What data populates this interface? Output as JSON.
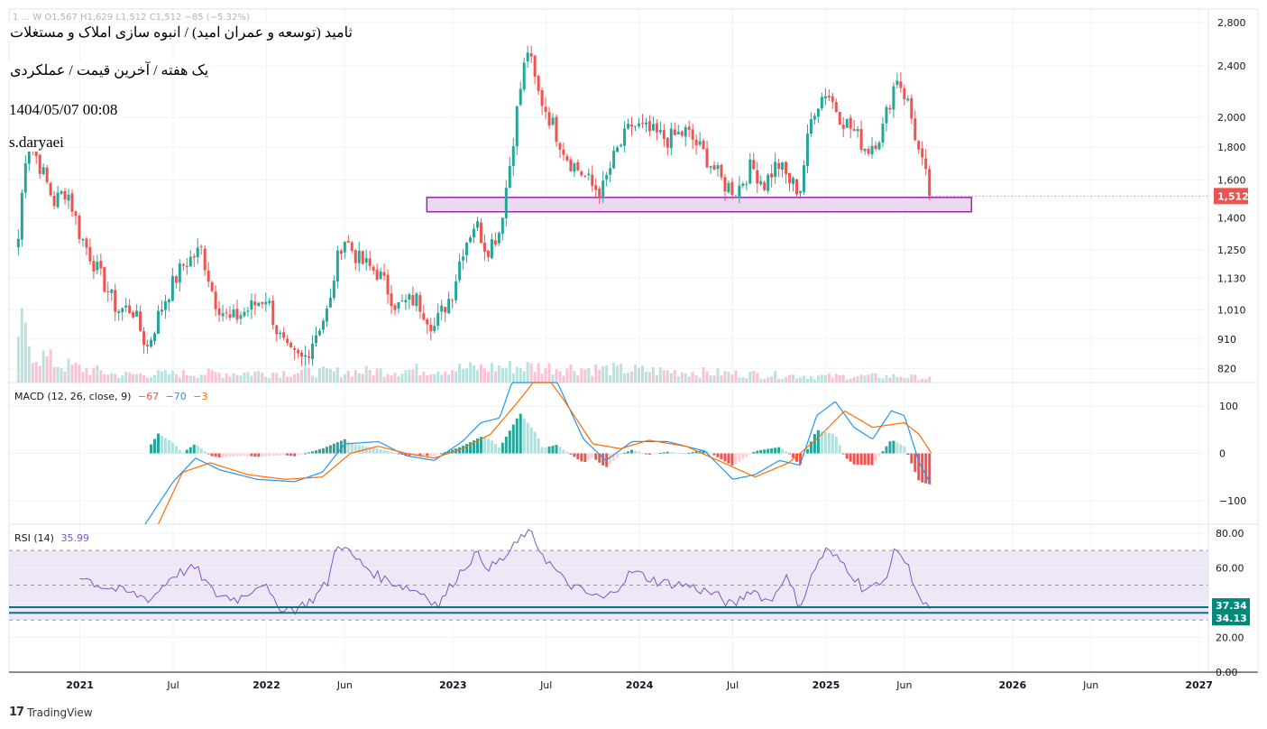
{
  "header": {
    "ohlc_text": "1 ... W  O1,567  H1,629  L1,512  C1,512  −85 (−5.32%)",
    "title_main": "ثامید (توسعه و عمران امید) / انبوه سازی املاک و مستغلات",
    "title_sub": "یک هفته / آخرین قیمت / عملکردی",
    "date": "1404/05/07 00:08",
    "author": "s.daryaei"
  },
  "branding": {
    "logo_mark": "17",
    "logo_text": "TradingView"
  },
  "colors": {
    "up": "#26a69a",
    "down": "#ef5350",
    "macd_line": "#2196f3",
    "signal_line": "#ff6d00",
    "hist_up_strong": "#26a69a",
    "hist_up_weak": "#b2dfdb",
    "hist_down_strong": "#ef5350",
    "hist_down_weak": "#ffcdd2",
    "rsi_line": "#7e57c2",
    "rsi_band": "#ede7f6",
    "support_zone_fill": "#e1bee7",
    "support_zone_border": "#9c27b0",
    "hline": "#0b7285",
    "last_price_bg": "#ef5350",
    "hline_label_bg": "#00897b"
  },
  "chart_data": [
    {
      "type": "candlestick",
      "title": "ثامید (توسعه و عمران امید) / انبوه سازی املاک و مستغلات",
      "interval": "1W",
      "scale": "log",
      "ylim": [
        780,
        2900
      ],
      "y_ticks": [
        2800,
        2400,
        2000,
        1800,
        1600,
        1400,
        1250,
        1130,
        1010,
        910,
        820
      ],
      "y_tick_labels": [
        "2,800",
        "2,400",
        "2,000",
        "1,800",
        "1,600",
        "1,400",
        "1,250",
        "1,130",
        "1,010",
        "910",
        "820"
      ],
      "last_price": 1512,
      "last_price_label": "1,512",
      "x_ticks": [
        {
          "label": "2021",
          "t": 2021.0
        },
        {
          "label": "Jul",
          "t": 2021.5
        },
        {
          "label": "2022",
          "t": 2022.0
        },
        {
          "label": "Jun",
          "t": 2022.42
        },
        {
          "label": "2023",
          "t": 2023.0
        },
        {
          "label": "Jul",
          "t": 2023.5
        },
        {
          "label": "2024",
          "t": 2024.0
        },
        {
          "label": "Jul",
          "t": 2024.5
        },
        {
          "label": "2025",
          "t": 2025.0
        },
        {
          "label": "Jun",
          "t": 2025.42
        },
        {
          "label": "2026",
          "t": 2026.0
        },
        {
          "label": "Jun",
          "t": 2026.42
        },
        {
          "label": "2027",
          "t": 2027.0
        }
      ],
      "t_range": [
        2020.62,
        2027.05
      ],
      "data_end": 2025.57,
      "support_zone": {
        "t_start": 2022.86,
        "t_end": 2025.78,
        "low": 1430,
        "high": 1505
      },
      "anchors": [
        {
          "t": 2020.67,
          "v": 1300
        },
        {
          "t": 2020.72,
          "v": 1880
        },
        {
          "t": 2020.78,
          "v": 1700
        },
        {
          "t": 2020.86,
          "v": 1480
        },
        {
          "t": 2020.93,
          "v": 1550
        },
        {
          "t": 2021.0,
          "v": 1320
        },
        {
          "t": 2021.1,
          "v": 1150
        },
        {
          "t": 2021.2,
          "v": 1010
        },
        {
          "t": 2021.28,
          "v": 1015
        },
        {
          "t": 2021.36,
          "v": 880
        },
        {
          "t": 2021.45,
          "v": 1040
        },
        {
          "t": 2021.55,
          "v": 1180
        },
        {
          "t": 2021.65,
          "v": 1250
        },
        {
          "t": 2021.72,
          "v": 1050
        },
        {
          "t": 2021.8,
          "v": 970
        },
        {
          "t": 2021.9,
          "v": 1010
        },
        {
          "t": 2022.0,
          "v": 1060
        },
        {
          "t": 2022.06,
          "v": 930
        },
        {
          "t": 2022.12,
          "v": 860
        },
        {
          "t": 2022.2,
          "v": 845
        },
        {
          "t": 2022.28,
          "v": 950
        },
        {
          "t": 2022.34,
          "v": 1020
        },
        {
          "t": 2022.36,
          "v": 1130
        },
        {
          "t": 2022.41,
          "v": 1310
        },
        {
          "t": 2022.5,
          "v": 1200
        },
        {
          "t": 2022.6,
          "v": 1150
        },
        {
          "t": 2022.7,
          "v": 1020
        },
        {
          "t": 2022.8,
          "v": 1050
        },
        {
          "t": 2022.9,
          "v": 950
        },
        {
          "t": 2023.0,
          "v": 1080
        },
        {
          "t": 2023.05,
          "v": 1250
        },
        {
          "t": 2023.12,
          "v": 1380
        },
        {
          "t": 2023.18,
          "v": 1250
        },
        {
          "t": 2023.25,
          "v": 1340
        },
        {
          "t": 2023.3,
          "v": 1650
        },
        {
          "t": 2023.36,
          "v": 2200
        },
        {
          "t": 2023.4,
          "v": 2550
        },
        {
          "t": 2023.45,
          "v": 2200
        },
        {
          "t": 2023.5,
          "v": 2050
        },
        {
          "t": 2023.55,
          "v": 1900
        },
        {
          "t": 2023.62,
          "v": 1720
        },
        {
          "t": 2023.7,
          "v": 1630
        },
        {
          "t": 2023.75,
          "v": 1560
        },
        {
          "t": 2023.8,
          "v": 1540
        },
        {
          "t": 2023.87,
          "v": 1750
        },
        {
          "t": 2023.96,
          "v": 1950
        },
        {
          "t": 2024.05,
          "v": 1900
        },
        {
          "t": 2024.15,
          "v": 1850
        },
        {
          "t": 2024.25,
          "v": 1900
        },
        {
          "t": 2024.35,
          "v": 1750
        },
        {
          "t": 2024.45,
          "v": 1580
        },
        {
          "t": 2024.52,
          "v": 1540
        },
        {
          "t": 2024.6,
          "v": 1680
        },
        {
          "t": 2024.67,
          "v": 1580
        },
        {
          "t": 2024.74,
          "v": 1700
        },
        {
          "t": 2024.8,
          "v": 1600
        },
        {
          "t": 2024.86,
          "v": 1540
        },
        {
          "t": 2024.93,
          "v": 2050
        },
        {
          "t": 2025.0,
          "v": 2200
        },
        {
          "t": 2025.08,
          "v": 2000
        },
        {
          "t": 2025.15,
          "v": 1900
        },
        {
          "t": 2025.22,
          "v": 1780
        },
        {
          "t": 2025.3,
          "v": 1900
        },
        {
          "t": 2025.38,
          "v": 2320
        },
        {
          "t": 2025.44,
          "v": 2100
        },
        {
          "t": 2025.5,
          "v": 1750
        },
        {
          "t": 2025.54,
          "v": 1597
        },
        {
          "t": 2025.57,
          "v": 1512
        }
      ],
      "volume_peaks": [
        {
          "t": 2020.68,
          "v": 100
        },
        {
          "t": 2020.77,
          "v": 55
        },
        {
          "t": 2020.88,
          "v": 35
        },
        {
          "t": 2021.2,
          "v": 15
        },
        {
          "t": 2022.2,
          "v": 20
        },
        {
          "t": 2022.41,
          "v": 20
        },
        {
          "t": 2023.35,
          "v": 30
        },
        {
          "t": 2023.42,
          "v": 30
        },
        {
          "t": 2024.95,
          "v": 12
        },
        {
          "t": 2025.4,
          "v": 12
        },
        {
          "t": 2025.55,
          "v": 8
        }
      ]
    },
    {
      "type": "line+histogram",
      "title": "MACD",
      "label": "MACD (12, 26, close, 9)",
      "hist_value": "−67",
      "macd_value": "−70",
      "signal_value": "−3",
      "ylim": [
        -150,
        150
      ],
      "y_ticks": [
        100,
        0,
        -100
      ],
      "y_tick_labels": [
        "100",
        "0",
        "−100"
      ],
      "macd_anchors": [
        {
          "t": 2021.35,
          "v": -150
        },
        {
          "t": 2021.5,
          "v": -60
        },
        {
          "t": 2021.62,
          "v": -10
        },
        {
          "t": 2021.75,
          "v": -35
        },
        {
          "t": 2021.95,
          "v": -55
        },
        {
          "t": 2022.15,
          "v": -60
        },
        {
          "t": 2022.3,
          "v": -40
        },
        {
          "t": 2022.42,
          "v": 20
        },
        {
          "t": 2022.6,
          "v": 25
        },
        {
          "t": 2022.75,
          "v": -5
        },
        {
          "t": 2022.9,
          "v": -15
        },
        {
          "t": 2023.05,
          "v": 25
        },
        {
          "t": 2023.15,
          "v": 65
        },
        {
          "t": 2023.25,
          "v": 75
        },
        {
          "t": 2023.36,
          "v": 200
        },
        {
          "t": 2023.45,
          "v": 200
        },
        {
          "t": 2023.56,
          "v": 150
        },
        {
          "t": 2023.7,
          "v": 30
        },
        {
          "t": 2023.82,
          "v": -15
        },
        {
          "t": 2023.96,
          "v": 25
        },
        {
          "t": 2024.15,
          "v": 25
        },
        {
          "t": 2024.35,
          "v": 5
        },
        {
          "t": 2024.5,
          "v": -55
        },
        {
          "t": 2024.62,
          "v": -45
        },
        {
          "t": 2024.75,
          "v": -15
        },
        {
          "t": 2024.86,
          "v": -25
        },
        {
          "t": 2024.95,
          "v": 80
        },
        {
          "t": 2025.05,
          "v": 110
        },
        {
          "t": 2025.15,
          "v": 55
        },
        {
          "t": 2025.25,
          "v": 30
        },
        {
          "t": 2025.35,
          "v": 90
        },
        {
          "t": 2025.42,
          "v": 80
        },
        {
          "t": 2025.5,
          "v": -20
        },
        {
          "t": 2025.57,
          "v": -70
        }
      ],
      "signal_anchors": [
        {
          "t": 2021.42,
          "v": -150
        },
        {
          "t": 2021.55,
          "v": -40
        },
        {
          "t": 2021.7,
          "v": -20
        },
        {
          "t": 2021.9,
          "v": -45
        },
        {
          "t": 2022.1,
          "v": -55
        },
        {
          "t": 2022.3,
          "v": -50
        },
        {
          "t": 2022.45,
          "v": 0
        },
        {
          "t": 2022.6,
          "v": 15
        },
        {
          "t": 2022.75,
          "v": 0
        },
        {
          "t": 2022.9,
          "v": -10
        },
        {
          "t": 2023.05,
          "v": 10
        },
        {
          "t": 2023.2,
          "v": 40
        },
        {
          "t": 2023.35,
          "v": 110
        },
        {
          "t": 2023.48,
          "v": 175
        },
        {
          "t": 2023.6,
          "v": 110
        },
        {
          "t": 2023.75,
          "v": 20
        },
        {
          "t": 2023.9,
          "v": 10
        },
        {
          "t": 2024.05,
          "v": 28
        },
        {
          "t": 2024.25,
          "v": 15
        },
        {
          "t": 2024.45,
          "v": -20
        },
        {
          "t": 2024.62,
          "v": -50
        },
        {
          "t": 2024.8,
          "v": -20
        },
        {
          "t": 2024.95,
          "v": 30
        },
        {
          "t": 2025.1,
          "v": 90
        },
        {
          "t": 2025.25,
          "v": 55
        },
        {
          "t": 2025.42,
          "v": 65
        },
        {
          "t": 2025.5,
          "v": 40
        },
        {
          "t": 2025.57,
          "v": -3
        }
      ]
    },
    {
      "type": "line",
      "title": "RSI",
      "label": "RSI (14)",
      "value": "35.99",
      "ylim": [
        0,
        82
      ],
      "y_ticks": [
        80,
        60,
        40,
        20,
        0
      ],
      "y_tick_labels": [
        "80.00",
        "60.00",
        "40.00",
        "20.00",
        "0.00"
      ],
      "band_upper": 70,
      "band_lower": 30,
      "mid_dashed": 50,
      "hlines": [
        {
          "value": 37.34,
          "label": "37.34"
        },
        {
          "value": 34.13,
          "label": "34.13"
        }
      ],
      "anchors": [
        {
          "t": 2021.0,
          "v": 56
        },
        {
          "t": 2021.1,
          "v": 50
        },
        {
          "t": 2021.25,
          "v": 46
        },
        {
          "t": 2021.38,
          "v": 42
        },
        {
          "t": 2021.5,
          "v": 56
        },
        {
          "t": 2021.62,
          "v": 60
        },
        {
          "t": 2021.72,
          "v": 45
        },
        {
          "t": 2021.85,
          "v": 42
        },
        {
          "t": 2021.98,
          "v": 52
        },
        {
          "t": 2022.05,
          "v": 38
        },
        {
          "t": 2022.15,
          "v": 36
        },
        {
          "t": 2022.25,
          "v": 42
        },
        {
          "t": 2022.33,
          "v": 52
        },
        {
          "t": 2022.38,
          "v": 75
        },
        {
          "t": 2022.48,
          "v": 65
        },
        {
          "t": 2022.6,
          "v": 55
        },
        {
          "t": 2022.72,
          "v": 50
        },
        {
          "t": 2022.85,
          "v": 45
        },
        {
          "t": 2022.92,
          "v": 38
        },
        {
          "t": 2023.02,
          "v": 55
        },
        {
          "t": 2023.12,
          "v": 68
        },
        {
          "t": 2023.2,
          "v": 60
        },
        {
          "t": 2023.28,
          "v": 66
        },
        {
          "t": 2023.35,
          "v": 75
        },
        {
          "t": 2023.4,
          "v": 82
        },
        {
          "t": 2023.5,
          "v": 65
        },
        {
          "t": 2023.6,
          "v": 52
        },
        {
          "t": 2023.72,
          "v": 45
        },
        {
          "t": 2023.82,
          "v": 42
        },
        {
          "t": 2023.96,
          "v": 58
        },
        {
          "t": 2024.1,
          "v": 52
        },
        {
          "t": 2024.25,
          "v": 50
        },
        {
          "t": 2024.4,
          "v": 45
        },
        {
          "t": 2024.5,
          "v": 38
        },
        {
          "t": 2024.6,
          "v": 48
        },
        {
          "t": 2024.7,
          "v": 40
        },
        {
          "t": 2024.78,
          "v": 56
        },
        {
          "t": 2024.86,
          "v": 38
        },
        {
          "t": 2024.95,
          "v": 62
        },
        {
          "t": 2025.0,
          "v": 70
        },
        {
          "t": 2025.1,
          "v": 62
        },
        {
          "t": 2025.2,
          "v": 48
        },
        {
          "t": 2025.3,
          "v": 50
        },
        {
          "t": 2025.38,
          "v": 72
        },
        {
          "t": 2025.45,
          "v": 58
        },
        {
          "t": 2025.52,
          "v": 38
        },
        {
          "t": 2025.57,
          "v": 36
        }
      ]
    }
  ]
}
